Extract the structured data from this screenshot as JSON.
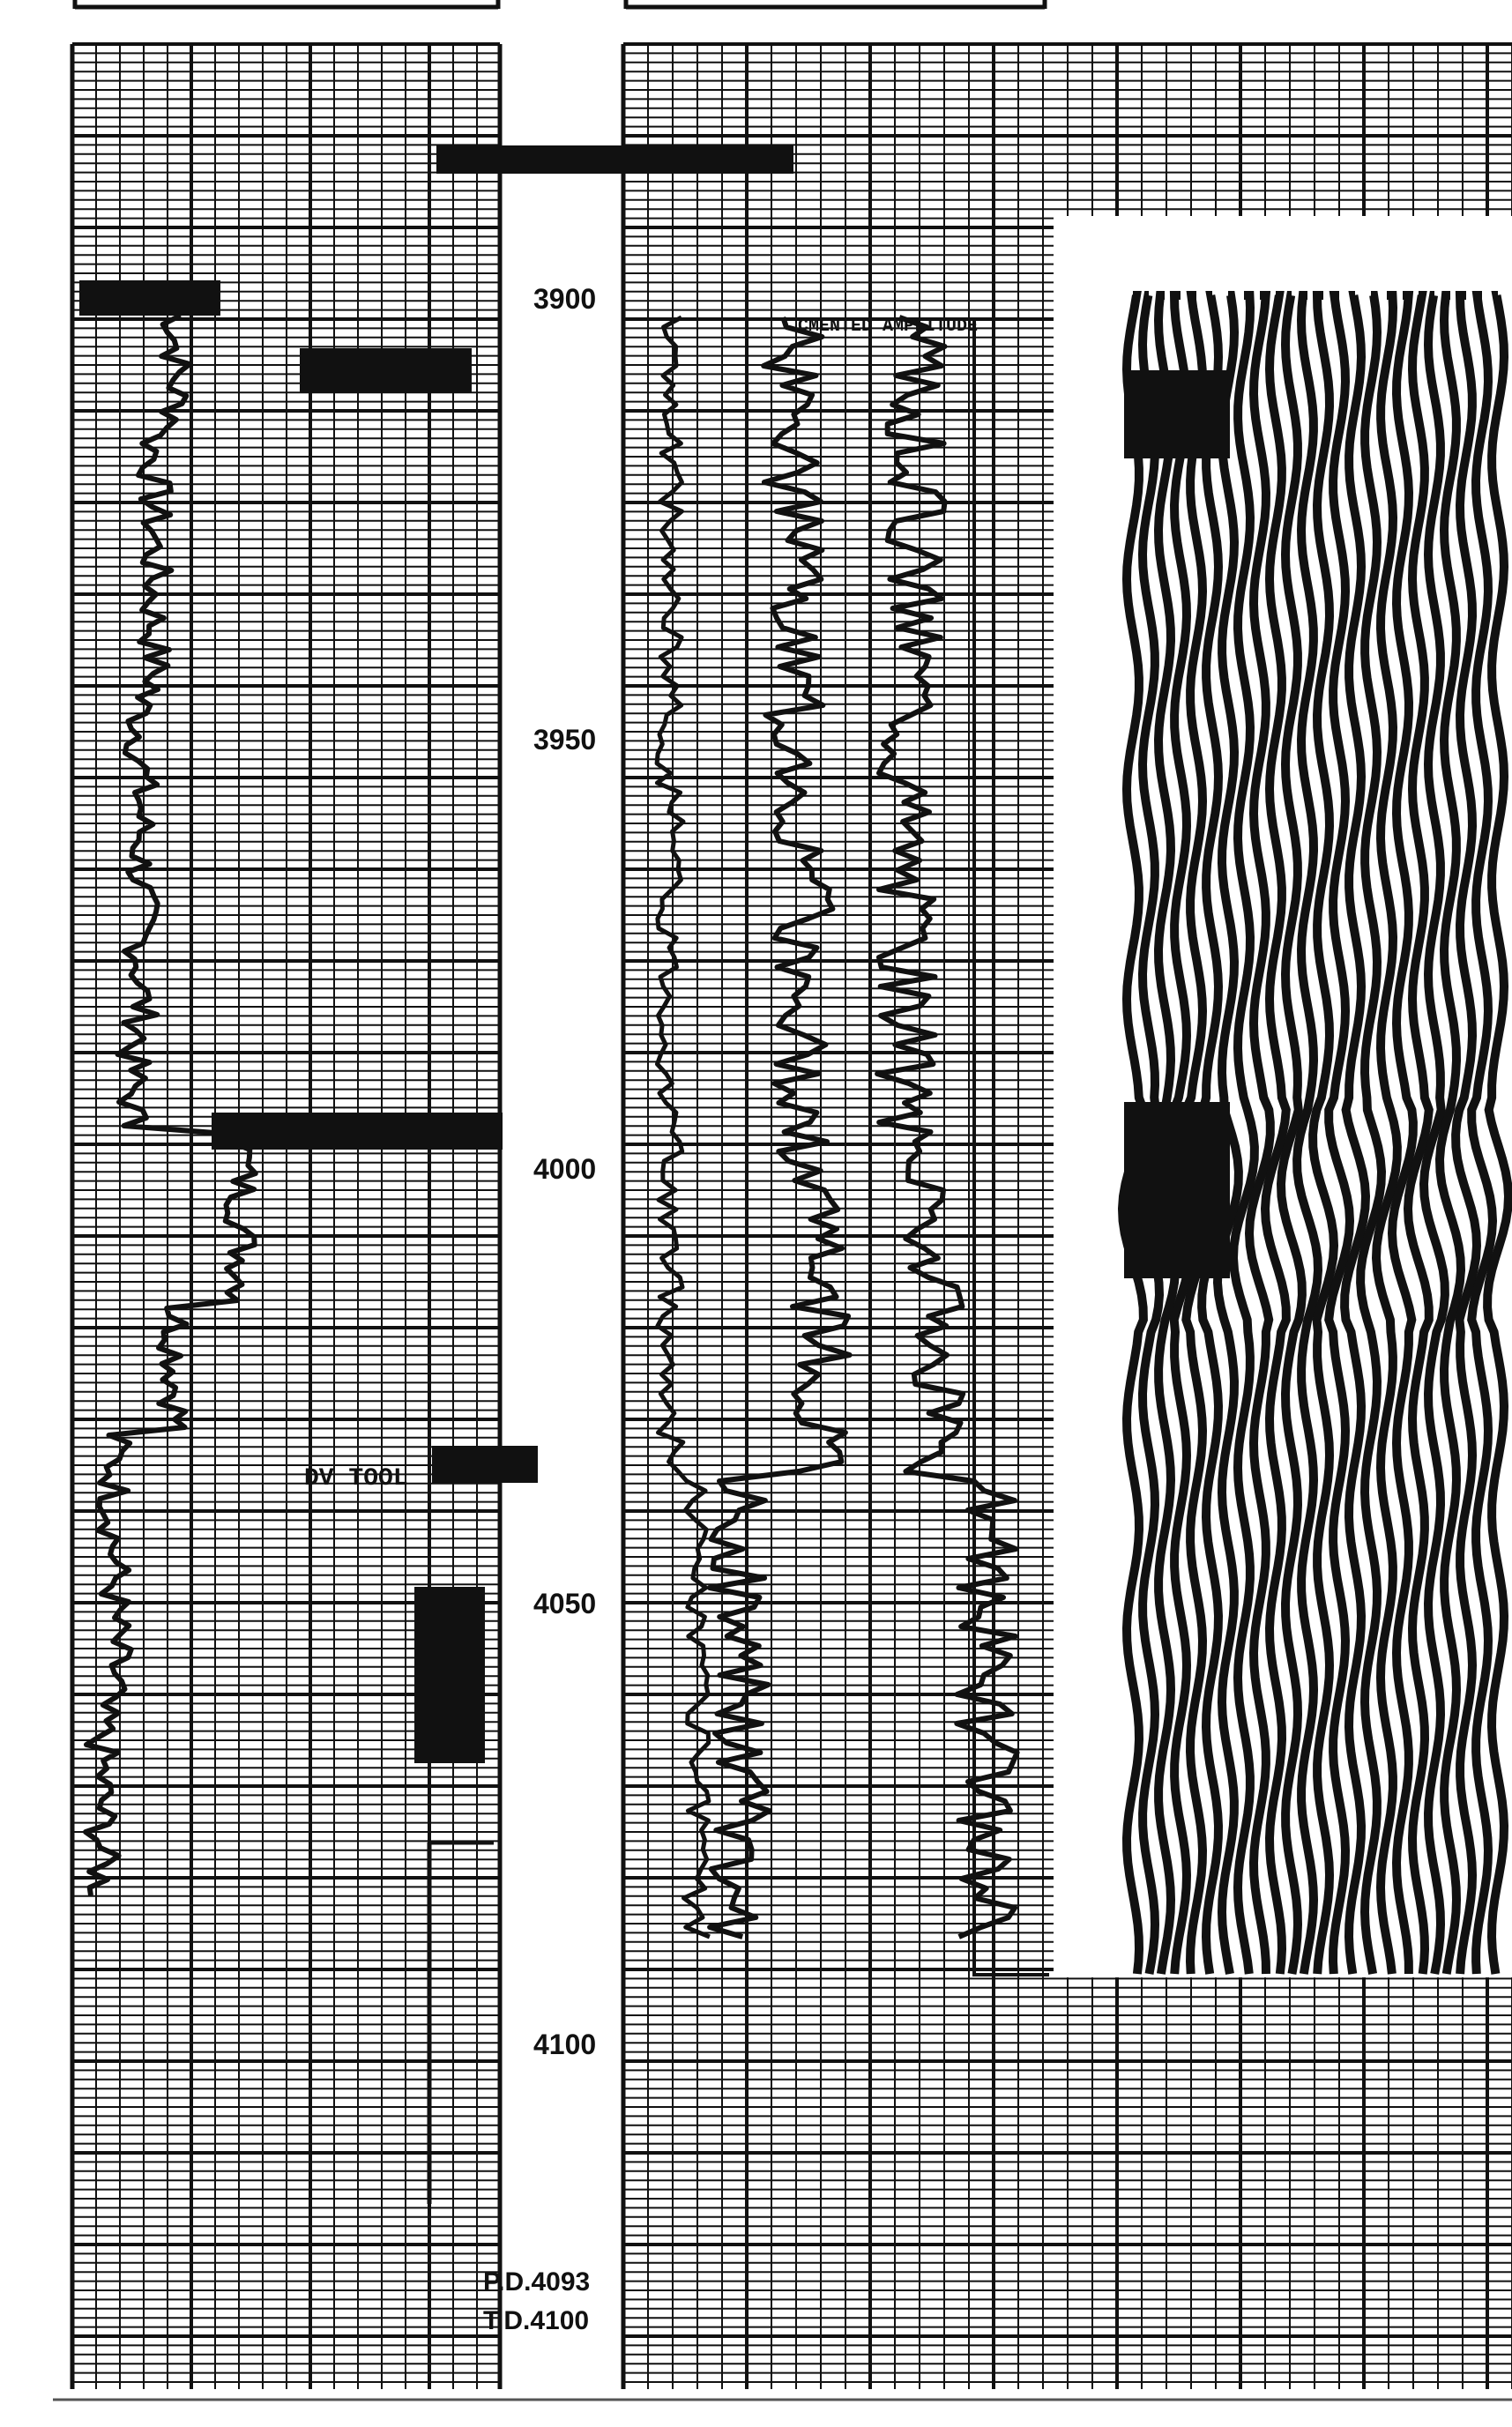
{
  "depth_scale": {
    "ticks": [
      {
        "label": "3900",
        "value": 3900
      },
      {
        "label": "3950",
        "value": 3950
      },
      {
        "label": "4000",
        "value": 4000
      },
      {
        "label": "4050",
        "value": 4050
      },
      {
        "label": "4100",
        "value": 4100
      }
    ],
    "range": [
      3870,
      4135
    ]
  },
  "annotations": {
    "dv_tool": "DV TOOL",
    "cbl_amplitude": "CMENTED AMPLITUDE",
    "pbtd": "P.D.4093",
    "td": "T.D.4100"
  },
  "tracks": {
    "left": "gamma-ray track",
    "middle": "cement bond amplitude track",
    "right": "variable density log"
  },
  "colors": {
    "ink": "#111111",
    "grid": "#1a1a1a",
    "paper": "#ffffff"
  }
}
